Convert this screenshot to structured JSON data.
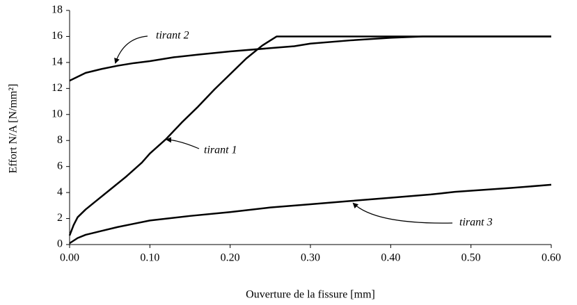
{
  "chart_data": {
    "type": "line",
    "xlabel": "Ouverture de la fissure [mm]",
    "ylabel": "Effort N/A  [N/mm²]",
    "xlim": [
      0,
      0.6
    ],
    "ylim": [
      0,
      18
    ],
    "xticks": [
      {
        "value": 0,
        "label": "0.00"
      },
      {
        "value": 0.1,
        "label": "0.10"
      },
      {
        "value": 0.2,
        "label": "0.20"
      },
      {
        "value": 0.3,
        "label": "0.30"
      },
      {
        "value": 0.4,
        "label": "0.40"
      },
      {
        "value": 0.5,
        "label": "0.50"
      },
      {
        "value": 0.6,
        "label": "0.60"
      }
    ],
    "yticks": [
      0,
      2,
      4,
      6,
      8,
      10,
      12,
      14,
      16,
      18
    ],
    "series": [
      {
        "name": "tirant 1",
        "color": "#000000",
        "x": [
          0,
          0.005,
          0.01,
          0.02,
          0.03,
          0.05,
          0.07,
          0.09,
          0.1,
          0.12,
          0.14,
          0.16,
          0.18,
          0.2,
          0.22,
          0.24,
          0.258,
          0.3,
          0.4,
          0.5,
          0.6
        ],
        "values": [
          0.7,
          1.5,
          2.1,
          2.7,
          3.2,
          4.2,
          5.2,
          6.3,
          7.0,
          8.1,
          9.4,
          10.6,
          11.9,
          13.1,
          14.3,
          15.3,
          16,
          16,
          16,
          16,
          16
        ]
      },
      {
        "name": "tirant 2",
        "color": "#000000",
        "x": [
          0,
          0.01,
          0.02,
          0.04,
          0.06,
          0.08,
          0.1,
          0.13,
          0.16,
          0.2,
          0.25,
          0.28,
          0.3,
          0.35,
          0.4,
          0.44,
          0.5,
          0.6
        ],
        "values": [
          12.6,
          12.9,
          13.2,
          13.5,
          13.75,
          13.95,
          14.1,
          14.4,
          14.6,
          14.85,
          15.1,
          15.25,
          15.45,
          15.7,
          15.9,
          16,
          16,
          16
        ]
      },
      {
        "name": "tirant 3",
        "color": "#000000",
        "x": [
          0,
          0.01,
          0.02,
          0.04,
          0.06,
          0.08,
          0.1,
          0.15,
          0.2,
          0.25,
          0.3,
          0.35,
          0.4,
          0.45,
          0.48,
          0.55,
          0.6
        ],
        "values": [
          0.1,
          0.5,
          0.75,
          1.05,
          1.35,
          1.6,
          1.85,
          2.2,
          2.5,
          2.85,
          3.1,
          3.35,
          3.6,
          3.85,
          4.05,
          4.35,
          4.6
        ]
      }
    ]
  }
}
